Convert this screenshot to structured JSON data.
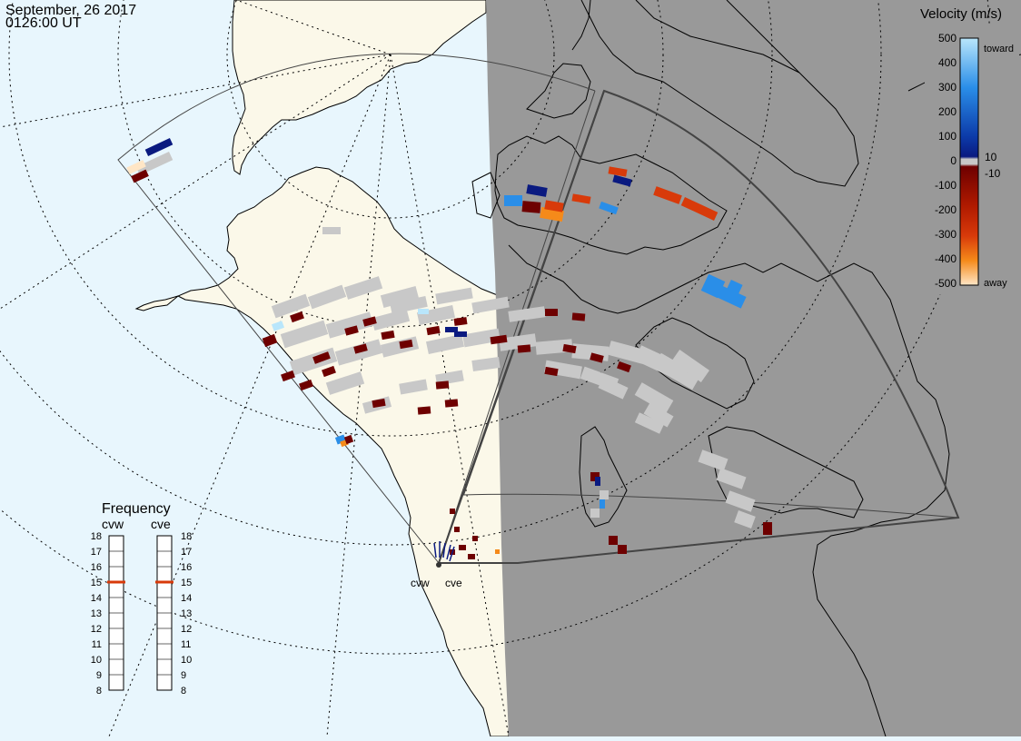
{
  "header": {
    "date": "September, 26 2017",
    "time": "0126:00 UT"
  },
  "colorbar": {
    "title": "Velocity (m/s)",
    "tick_labels": [
      "500",
      "400",
      "300",
      "200",
      "100",
      "10",
      "0",
      "-10",
      "-100",
      "-200",
      "-300",
      "-400",
      "-500"
    ],
    "toward_label": "toward",
    "away_label": "away",
    "colors": {
      "toward_max": "#b9e6fb",
      "toward_mid": "#2a8ee8",
      "toward_min": "#0a1a80",
      "zero": "#c8c8c8",
      "away_min": "#6e0000",
      "away_mid": "#d83a0a",
      "away_mid2": "#f58a1a",
      "away_max": "#ffe6c6"
    }
  },
  "frequency_panel": {
    "title": "Frequency",
    "radars": [
      "cvw",
      "cve"
    ],
    "scale": [
      "18",
      "17",
      "16",
      "15",
      "14",
      "13",
      "12",
      "11",
      "10",
      "9",
      "8"
    ],
    "values_mhz": [
      15,
      15
    ],
    "marker_color": "#d83a0a"
  },
  "map": {
    "land_color": "#fbf8e9",
    "ocean_color": "#e8f6fd",
    "night_color": "#999999",
    "radar_sites": [
      {
        "name": "cvw"
      },
      {
        "name": "cve"
      }
    ]
  }
}
